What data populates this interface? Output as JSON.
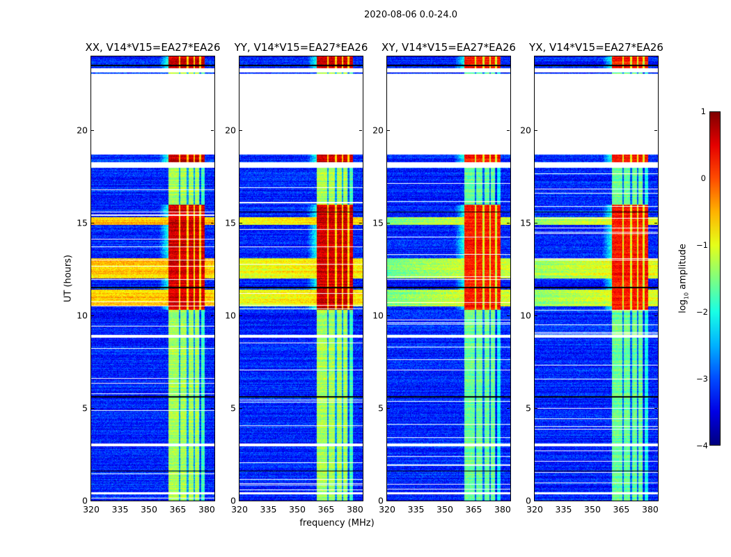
{
  "chart_data": {
    "type": "heatmap",
    "suptitle": "2020-08-06 0.0-24.0",
    "panels": [
      {
        "title": "XX, V14*V15=EA27*EA26",
        "broadband_strength": 1.0
      },
      {
        "title": "YY, V14*V15=EA27*EA26",
        "broadband_strength": 0.8
      },
      {
        "title": "XY, V14*V15=EA27*EA26",
        "broadband_strength": 0.55
      },
      {
        "title": "YX, V14*V15=EA27*EA26",
        "broadband_strength": 0.6
      }
    ],
    "xlabel": "frequency (MHz)",
    "ylabel": "UT (hours)",
    "xlim": [
      320,
      384
    ],
    "ylim": [
      0,
      24
    ],
    "xticks": [
      "320",
      "335",
      "350",
      "365",
      "380"
    ],
    "xtick_values": [
      320,
      335,
      350,
      365,
      380
    ],
    "yticks": [
      "0",
      "5",
      "10",
      "15",
      "20"
    ],
    "ytick_values": [
      0,
      5,
      10,
      15,
      20
    ],
    "colorbar": {
      "label_base": "log",
      "label_sub": "10",
      "label_rest": " amplitude",
      "range": [
        -4,
        1
      ],
      "ticks": [
        "1",
        "0",
        "−1",
        "−2",
        "−3",
        "−4"
      ],
      "tick_values": [
        1,
        0,
        -1,
        -2,
        -3,
        -4
      ],
      "colormap": "jet"
    },
    "features": {
      "background_level": -3.2,
      "rfi_band_MHz": [
        360,
        379
      ],
      "rfi_band_level_quiet": -1.3,
      "rfi_band_level_active": 0.6,
      "rfi_active_hours": [
        10.3,
        16.0
      ],
      "broadband_rfi_hours": [
        [
          10.5,
          11.4
        ],
        [
          12.0,
          13.1
        ],
        [
          14.9,
          15.3
        ]
      ],
      "no_data_hours": [
        [
          18.7,
          23.05
        ],
        [
          23.15,
          23.35
        ],
        [
          18.0,
          18.3
        ],
        [
          8.8,
          8.95
        ],
        [
          2.95,
          3.1
        ],
        [
          0.35,
          0.45
        ]
      ],
      "flagged_lines_hours": [
        1.6,
        5.6,
        11.5,
        15.6,
        23.5
      ]
    }
  }
}
